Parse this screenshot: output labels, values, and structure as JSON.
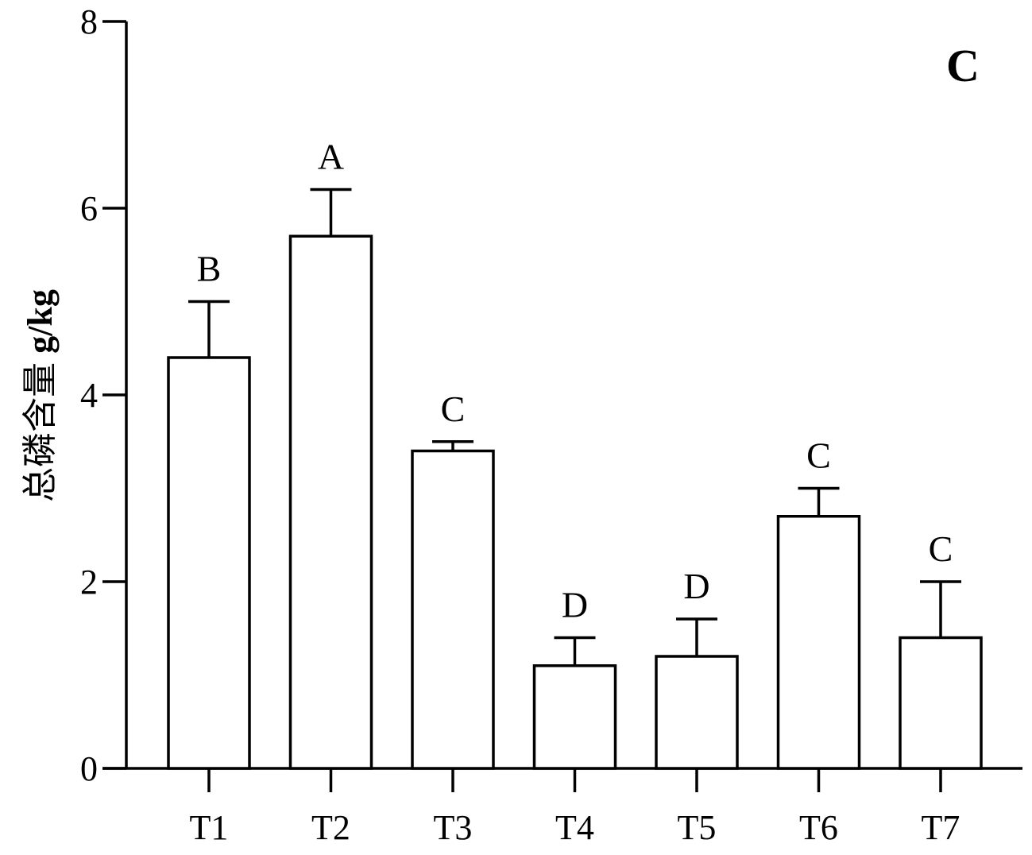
{
  "chart_data": {
    "type": "bar",
    "panel_label": "C",
    "ylabel_prefix": "总磷含量 ",
    "ylabel_unit": "g/kg",
    "xlabel": "",
    "ylim": [
      0,
      8
    ],
    "yticks": [
      0,
      2,
      4,
      6,
      8
    ],
    "categories": [
      "T1",
      "T2",
      "T3",
      "T4",
      "T5",
      "T6",
      "T7"
    ],
    "values": [
      4.4,
      5.7,
      3.4,
      1.1,
      1.2,
      2.7,
      1.4
    ],
    "error_upper": [
      5.0,
      6.2,
      3.5,
      1.4,
      1.6,
      3.0,
      2.0
    ],
    "significance_letters": [
      "B",
      "A",
      "C",
      "D",
      "D",
      "C",
      "C"
    ],
    "bar_fill": "#ffffff",
    "stroke_color": "#000000",
    "grid": false
  }
}
